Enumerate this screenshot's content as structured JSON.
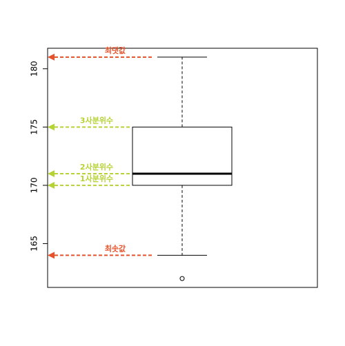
{
  "chart_data": {
    "type": "box",
    "min": 164,
    "q1": 170,
    "median": 171,
    "q3": 175,
    "max": 181,
    "outliers": [
      162
    ],
    "ylim": [
      161.24,
      181.76
    ],
    "yticks": [
      165,
      170,
      175,
      180
    ],
    "annotations": [
      {
        "label": "최댓값",
        "value": 181,
        "color": "#e8522a"
      },
      {
        "label": "3사분위수",
        "value": 175,
        "color": "#b5d334"
      },
      {
        "label": "2사분위수",
        "value": 171,
        "color": "#b5d334"
      },
      {
        "label": "1사분위수",
        "value": 170,
        "color": "#b5d334"
      },
      {
        "label": "최솟값",
        "value": 164,
        "color": "#e8522a"
      }
    ]
  }
}
